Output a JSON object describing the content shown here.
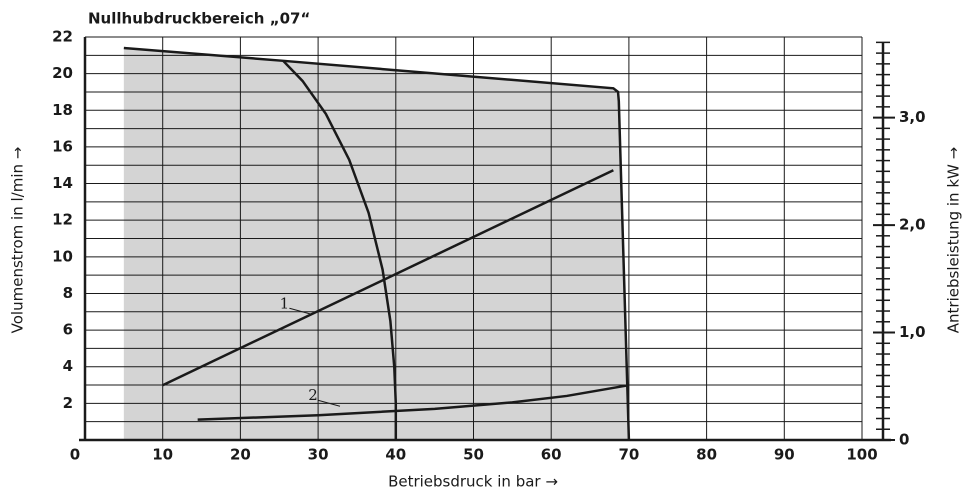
{
  "chart_data": {
    "type": "line",
    "title": "Nullhubdruckbereich „07“",
    "xlabel": "Betriebsdruck in bar →",
    "ylabel": "Volumenstrom in l/min →",
    "y2label": "Antriebsleistung in kW →",
    "xlim": [
      0,
      100
    ],
    "xticks": [
      0,
      10,
      20,
      30,
      40,
      50,
      60,
      70,
      80,
      90,
      100
    ],
    "ylim": [
      0,
      22
    ],
    "yticks": [
      2,
      4,
      6,
      8,
      10,
      12,
      14,
      16,
      18,
      20,
      22
    ],
    "yminorticks": [
      1,
      3,
      5,
      7,
      9,
      11,
      13,
      15,
      17,
      19,
      21
    ],
    "y2lim": [
      0,
      3.75
    ],
    "y2ticks": [
      0,
      {
        "value": 1,
        "label": "1,0"
      },
      {
        "value": 2,
        "label": "2,0"
      },
      {
        "value": 3,
        "label": "3,0"
      }
    ],
    "y2minorticks": [
      0.1,
      0.2,
      0.3,
      0.4,
      0.5,
      0.6,
      0.7,
      0.8,
      0.9,
      1.1,
      1.2,
      1.3,
      1.4,
      1.5,
      1.6,
      1.7,
      1.8,
      1.9,
      2.1,
      2.2,
      2.3,
      2.4,
      2.5,
      2.6,
      2.7,
      2.8,
      2.9,
      3.1,
      3.2,
      3.3,
      3.4,
      3.5,
      3.6,
      3.7
    ],
    "grid": true,
    "series": [
      {
        "style": "area",
        "color": "#d4d4d4",
        "x": [
          5,
          25.5,
          68,
          68.6,
          68.7,
          70
        ],
        "values": [
          21.4,
          20.7,
          19.2,
          19.0,
          18.5,
          0
        ]
      },
      {
        "style": "line",
        "color": "#1a1a1a",
        "x": [
          25.5,
          28,
          31,
          34,
          36.5,
          38.3,
          39.3,
          39.8,
          40,
          40
        ],
        "values": [
          20.7,
          19.6,
          17.8,
          15.3,
          12.4,
          9.3,
          6.5,
          4.0,
          2.0,
          0
        ]
      },
      {
        "style": "line",
        "color": "#1a1a1a",
        "axis": "y2",
        "label": "1",
        "x": [
          10,
          68
        ],
        "values": [
          0.51,
          2.51
        ]
      },
      {
        "style": "line",
        "color": "#1a1a1a",
        "axis": "y2",
        "label": "2",
        "x": [
          14.5,
          30,
          45,
          55,
          62,
          70
        ],
        "values": [
          0.19,
          0.23,
          0.29,
          0.35,
          0.41,
          0.51
        ]
      }
    ]
  }
}
